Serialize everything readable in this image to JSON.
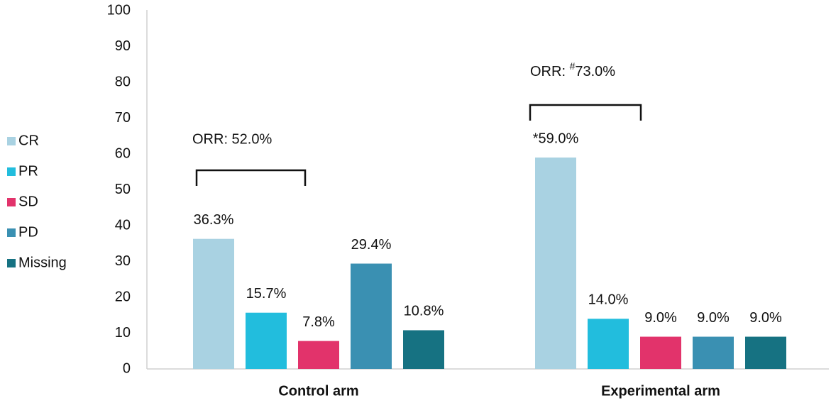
{
  "chart_data": {
    "type": "bar",
    "categories": [
      "Control arm",
      "Experimental arm"
    ],
    "series": [
      {
        "name": "CR",
        "color": "#a9d2e2",
        "values": [
          36.3,
          59.0
        ],
        "value_labels": [
          "36.3%",
          "*59.0%"
        ]
      },
      {
        "name": "PR",
        "color": "#22bddd",
        "values": [
          15.7,
          14.0
        ],
        "value_labels": [
          "15.7%",
          "14.0%"
        ]
      },
      {
        "name": "SD",
        "color": "#e2336b",
        "values": [
          7.8,
          9.0
        ],
        "value_labels": [
          "7.8%",
          "9.0%"
        ]
      },
      {
        "name": "PD",
        "color": "#3a90b2",
        "values": [
          29.4,
          9.0
        ],
        "value_labels": [
          "29.4%",
          "9.0%"
        ]
      },
      {
        "name": "Missing",
        "color": "#167282",
        "values": [
          10.8,
          9.0
        ],
        "value_labels": [
          "10.8%",
          "9.0%"
        ]
      }
    ],
    "ylim": [
      0,
      100
    ],
    "yticks": [
      0,
      10,
      20,
      30,
      40,
      50,
      60,
      70,
      80,
      90,
      100
    ],
    "grid": false,
    "legend": "left",
    "annotations": [
      {
        "label": "ORR: 52.0%"
      },
      {
        "label": "ORR: ",
        "superscript": "#",
        "label_end": "73.0%"
      }
    ]
  }
}
